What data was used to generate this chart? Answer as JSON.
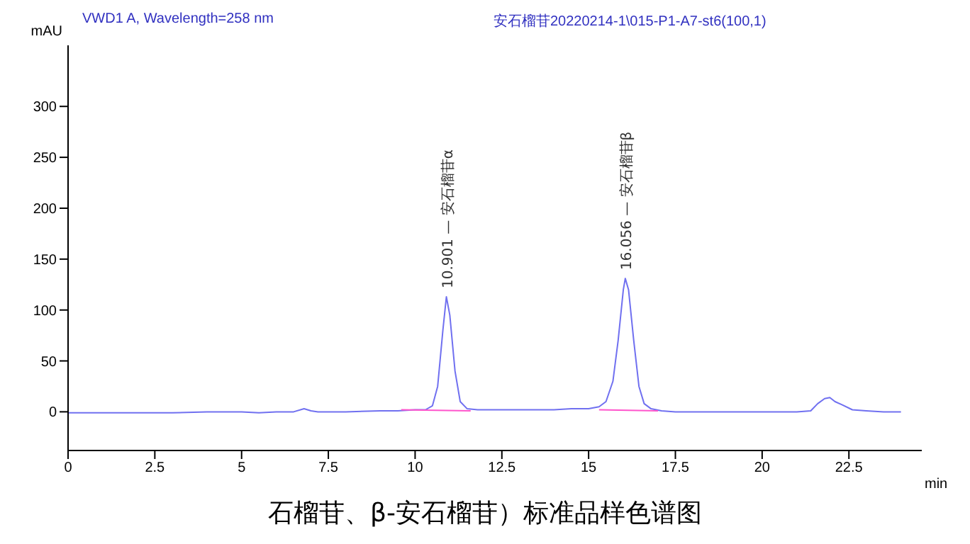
{
  "chart_data": {
    "type": "line",
    "title": "VWD1 A, Wavelength=258 nm",
    "subtitle": "安石榴苷20220214-1\\015-P1-A7-st6(100,1)",
    "xlabel": "min",
    "ylabel": "mAU",
    "xlim": [
      0,
      24.6
    ],
    "ylim": [
      -38,
      360
    ],
    "xticks": [
      0,
      2.5,
      5,
      7.5,
      10,
      12.5,
      15,
      17.5,
      20,
      22.5
    ],
    "yticks": [
      0,
      50,
      100,
      150,
      200,
      250,
      300
    ],
    "marker": "none",
    "line_style": "solid",
    "series": [
      {
        "color": "#7070f0",
        "x": [
          0,
          1,
          2,
          3,
          4,
          5,
          5.5,
          6,
          6.5,
          6.8,
          7,
          7.2,
          7.5,
          8,
          9,
          9.5,
          10,
          10.3,
          10.5,
          10.65,
          10.8,
          10.901,
          11.0,
          11.15,
          11.3,
          11.5,
          11.8,
          12,
          13,
          14,
          14.5,
          15,
          15.3,
          15.5,
          15.7,
          15.85,
          16.0,
          16.056,
          16.15,
          16.3,
          16.45,
          16.6,
          16.8,
          17.1,
          17.5,
          18,
          19,
          20,
          21,
          21.4,
          21.6,
          21.8,
          21.95,
          22.1,
          22.3,
          22.6,
          23,
          23.5,
          24
        ],
        "values": [
          -1,
          -1,
          -1,
          -1,
          0,
          0,
          -1,
          0,
          0,
          3,
          1,
          0,
          0,
          0,
          1,
          1,
          2,
          2,
          6,
          25,
          80,
          113,
          95,
          40,
          10,
          3,
          2,
          2,
          2,
          2,
          3,
          3,
          5,
          10,
          30,
          70,
          120,
          131,
          120,
          70,
          25,
          8,
          3,
          1,
          0,
          0,
          0,
          0,
          0,
          1,
          8,
          13,
          14,
          10,
          7,
          2,
          1,
          0,
          0
        ]
      },
      {
        "color": "#ff55cc",
        "x": [
          9.6,
          11.6
        ],
        "values": [
          2,
          1
        ]
      },
      {
        "color": "#ff55cc",
        "x": [
          15.3,
          17.0
        ],
        "values": [
          2,
          1
        ]
      }
    ],
    "annotations": [
      {
        "text": "10.901 — 安石榴苷α",
        "x": 10.901,
        "y": 113
      },
      {
        "text": "16.056 — 安石榴苷β",
        "x": 16.056,
        "y": 131
      },
      "石榴苷、β-安石榴苷）标准品样色谱图"
    ]
  }
}
